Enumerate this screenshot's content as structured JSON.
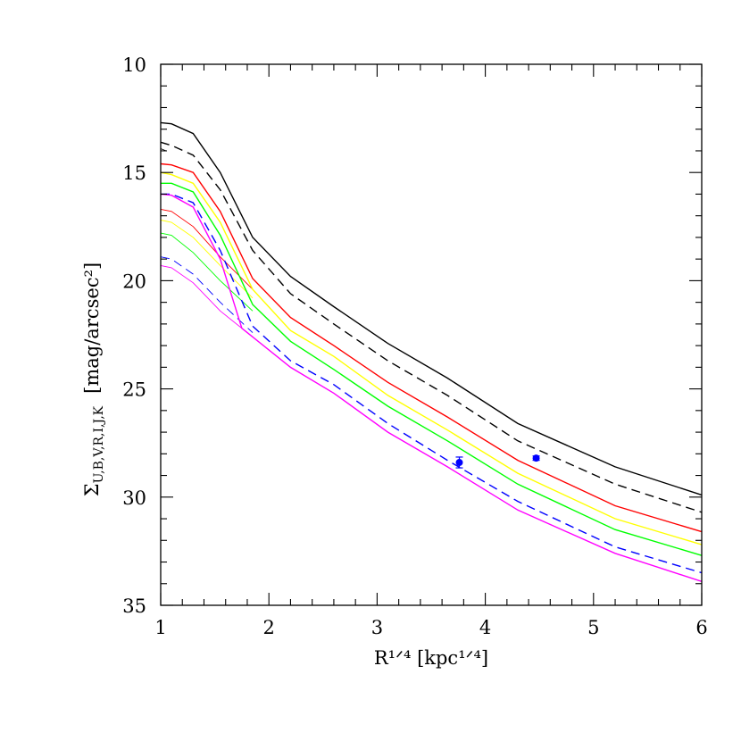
{
  "chart_data": {
    "type": "line",
    "xlabel": "R¹ᐟ⁴ [kpc¹ᐟ⁴]",
    "ylabel_main": "Σ",
    "ylabel_sub": "U,B,V,R,I,J,K",
    "ylabel_units": "[mag/arcsec²]",
    "xlim": [
      1,
      6
    ],
    "ylim": [
      35,
      10
    ],
    "y_inverted": true,
    "grid": false,
    "x_ticks_major": [
      1,
      2,
      3,
      4,
      5,
      6
    ],
    "x_tick_labels": [
      "1",
      "2",
      "3",
      "4",
      "5",
      "6"
    ],
    "x_minor_step": 0.2,
    "y_ticks_major": [
      10,
      15,
      20,
      25,
      30,
      35
    ],
    "y_tick_labels": [
      "10",
      "15",
      "20",
      "25",
      "30",
      "35"
    ],
    "y_minor_step": 1,
    "series": [
      {
        "color": "#000000",
        "dash": "solid",
        "outer": [
          [
            1.0,
            12.7
          ],
          [
            1.1,
            12.75
          ],
          [
            1.3,
            13.2
          ],
          [
            1.55,
            15.0
          ],
          [
            1.85,
            18.0
          ],
          [
            2.2,
            19.8
          ],
          [
            2.6,
            21.2
          ],
          [
            3.1,
            22.9
          ],
          [
            3.65,
            24.5
          ],
          [
            4.3,
            26.6
          ],
          [
            5.2,
            28.6
          ],
          [
            6.0,
            29.9
          ]
        ],
        "inner": []
      },
      {
        "color": "#000000",
        "dash": "dashed",
        "outer": [
          [
            1.0,
            13.6
          ],
          [
            1.1,
            13.75
          ],
          [
            1.3,
            14.2
          ],
          [
            1.55,
            15.8
          ],
          [
            1.85,
            18.6
          ],
          [
            2.2,
            20.6
          ],
          [
            2.6,
            22.0
          ],
          [
            3.1,
            23.7
          ],
          [
            3.65,
            25.3
          ],
          [
            4.3,
            27.4
          ],
          [
            5.2,
            29.4
          ],
          [
            6.0,
            30.7
          ]
        ],
        "inner": [
          [
            1.0,
            13.9
          ],
          [
            1.05,
            14.0
          ]
        ]
      },
      {
        "color": "#ff0000",
        "dash": "solid",
        "outer": [
          [
            1.0,
            14.6
          ],
          [
            1.1,
            14.65
          ],
          [
            1.3,
            15.0
          ],
          [
            1.55,
            16.8
          ],
          [
            1.85,
            19.9
          ],
          [
            2.2,
            21.7
          ],
          [
            2.6,
            23.0
          ],
          [
            3.1,
            24.7
          ],
          [
            3.65,
            26.3
          ],
          [
            4.3,
            28.3
          ],
          [
            5.2,
            30.4
          ],
          [
            6.0,
            31.6
          ]
        ],
        "inner": [
          [
            1.0,
            16.7
          ],
          [
            1.1,
            16.8
          ],
          [
            1.3,
            17.5
          ],
          [
            1.55,
            18.9
          ],
          [
            1.85,
            20.4
          ]
        ]
      },
      {
        "color": "#ffff00",
        "dash": "solid",
        "outer": [
          [
            1.0,
            15.0
          ],
          [
            1.1,
            15.1
          ],
          [
            1.3,
            15.5
          ],
          [
            1.55,
            17.3
          ],
          [
            1.85,
            20.4
          ],
          [
            2.2,
            22.3
          ],
          [
            2.6,
            23.5
          ],
          [
            3.1,
            25.3
          ],
          [
            3.65,
            26.9
          ],
          [
            4.3,
            28.9
          ],
          [
            5.2,
            31.0
          ],
          [
            6.0,
            32.2
          ]
        ],
        "inner": [
          [
            1.0,
            17.2
          ],
          [
            1.1,
            17.3
          ],
          [
            1.3,
            18.0
          ],
          [
            1.55,
            19.3
          ],
          [
            1.85,
            20.8
          ]
        ]
      },
      {
        "color": "#00ff00",
        "dash": "solid",
        "outer": [
          [
            1.0,
            15.5
          ],
          [
            1.1,
            15.5
          ],
          [
            1.3,
            15.9
          ],
          [
            1.55,
            17.9
          ],
          [
            1.85,
            21.1
          ],
          [
            2.2,
            22.8
          ],
          [
            2.6,
            24.1
          ],
          [
            3.1,
            25.8
          ],
          [
            3.65,
            27.4
          ],
          [
            4.3,
            29.4
          ],
          [
            5.2,
            31.5
          ],
          [
            6.0,
            32.7
          ]
        ],
        "inner": [
          [
            1.0,
            17.8
          ],
          [
            1.1,
            17.9
          ],
          [
            1.3,
            18.7
          ],
          [
            1.55,
            20.0
          ],
          [
            1.85,
            21.4
          ]
        ]
      },
      {
        "color": "#0000ff",
        "dash": "dashed",
        "outer": [
          [
            1.0,
            16.0
          ],
          [
            1.1,
            16.0
          ],
          [
            1.3,
            16.4
          ],
          [
            1.55,
            18.6
          ],
          [
            1.85,
            22.1
          ],
          [
            2.2,
            23.7
          ],
          [
            2.6,
            24.8
          ],
          [
            3.1,
            26.6
          ],
          [
            3.65,
            28.3
          ],
          [
            4.3,
            30.2
          ],
          [
            5.2,
            32.3
          ],
          [
            6.0,
            33.5
          ]
        ],
        "inner": [
          [
            1.0,
            18.9
          ],
          [
            1.1,
            19.0
          ],
          [
            1.3,
            19.7
          ],
          [
            1.55,
            21.0
          ],
          [
            1.85,
            22.4
          ]
        ]
      },
      {
        "color": "#ff00ff",
        "dash": "solid",
        "outer": [
          [
            1.0,
            16.0
          ],
          [
            1.1,
            16.05
          ],
          [
            1.3,
            16.6
          ],
          [
            1.55,
            19.0
          ],
          [
            1.75,
            22.2
          ],
          [
            2.2,
            24.0
          ],
          [
            2.6,
            25.2
          ],
          [
            3.1,
            27.0
          ],
          [
            3.65,
            28.6
          ],
          [
            4.3,
            30.6
          ],
          [
            5.2,
            32.6
          ],
          [
            6.0,
            33.9
          ]
        ],
        "inner": [
          [
            1.0,
            19.3
          ],
          [
            1.1,
            19.4
          ],
          [
            1.3,
            20.1
          ],
          [
            1.55,
            21.4
          ],
          [
            1.85,
            22.6
          ]
        ]
      }
    ],
    "points": [
      {
        "x": 3.76,
        "y": 28.4,
        "yerr": 0.25,
        "color": "#0000ff"
      },
      {
        "x": 4.47,
        "y": 28.2,
        "yerr": 0.1,
        "color": "#0000ff"
      }
    ]
  }
}
